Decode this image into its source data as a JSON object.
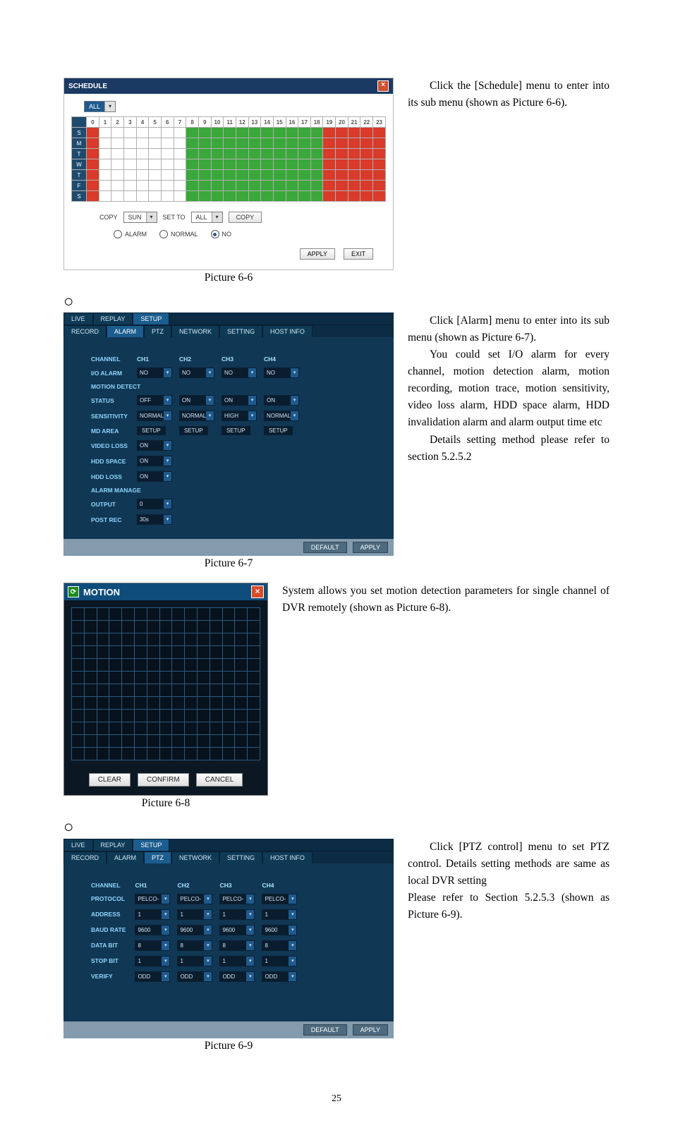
{
  "layout": {
    "page_number": "25",
    "captions": {
      "p66": "Picture 6-6",
      "p67": "Picture 6-7",
      "p68": "Picture 6-8",
      "p69": "Picture 6-9"
    },
    "text": {
      "schedule_para": "Click the [Schedule] menu to enter into its sub menu (shown as Picture 6-6).",
      "alarm_p1": "Click [Alarm] menu to enter into its sub menu (shown as Picture 6-7).",
      "alarm_p2": "You could set I/O alarm for every channel, motion detection alarm, motion recording, motion trace, motion sensitivity, video loss alarm, HDD space alarm, HDD invalidation alarm and alarm output time etc",
      "alarm_p3": "Details setting method please refer to section 5.2.5.2",
      "motion_para": "System allows you set motion detection parameters for single channel of DVR remotely (shown as Picture 6-8).",
      "ptz_p1": "Click [PTZ control] menu to set PTZ control. Details setting methods are same as local DVR setting",
      "ptz_p2": "Please refer to Section 5.2.5.3 (shown as Picture 6-9)."
    }
  },
  "pic66": {
    "title": "SCHEDULE",
    "ch_label": "",
    "ch_value": "ALL",
    "hours": [
      "0",
      "1",
      "2",
      "3",
      "4",
      "5",
      "6",
      "7",
      "8",
      "9",
      "10",
      "11",
      "12",
      "13",
      "14",
      "15",
      "16",
      "17",
      "18",
      "19",
      "20",
      "21",
      "22",
      "23"
    ],
    "days": [
      "S",
      "M",
      "T",
      "W",
      "T",
      "F",
      "S"
    ],
    "cell_colors": {
      "first": "#d93a2a",
      "blank": "#ffffff",
      "green": "#3aa83a",
      "red": "#d93a2a"
    },
    "pattern": {
      "green_start": 8,
      "red_start": 19
    },
    "copy_label": "COPY",
    "copy_from": "SUN",
    "setto_label": "SET TO",
    "setto_value": "ALL",
    "copy_btn": "COPY",
    "legend": {
      "alarm": "ALARM",
      "normal": "NORMAL",
      "no": "NO"
    },
    "apply": "APPLY",
    "exit": "EXIT"
  },
  "pic67": {
    "tabs_row1": [
      "LIVE",
      "REPLAY",
      "SETUP"
    ],
    "tabs_row2": [
      "RECORD",
      "ALARM",
      "PTZ",
      "NETWORK",
      "SETTING",
      "HOST INFO"
    ],
    "active_row1": 2,
    "active_row2": 1,
    "headers": [
      "CH1",
      "CH2",
      "CH3",
      "CH4"
    ],
    "rows": [
      {
        "label": "CHANNEL",
        "type": "header"
      },
      {
        "label": "I/O ALARM",
        "vals": [
          "NO",
          "NO",
          "NO",
          "NO"
        ]
      },
      {
        "label": "MOTION DETECT",
        "type": "section"
      },
      {
        "label": "STATUS",
        "vals": [
          "OFF",
          "ON",
          "ON",
          "ON"
        ]
      },
      {
        "label": "SENSITIVITY",
        "vals": [
          "NORMAL",
          "NORMAL",
          "HIGH",
          "NORMAL"
        ]
      },
      {
        "label": "MD AREA",
        "type": "setup",
        "count": 4,
        "btn": "SETUP"
      },
      {
        "label": "VIDEO LOSS",
        "vals": [
          "ON"
        ]
      },
      {
        "label": "HDD SPACE",
        "vals": [
          "ON"
        ]
      },
      {
        "label": "HDD LOSS",
        "vals": [
          "ON"
        ]
      },
      {
        "label": "ALARM MANAGE",
        "type": "section"
      },
      {
        "label": "OUTPUT",
        "vals": [
          "0"
        ]
      },
      {
        "label": "POST REC",
        "vals": [
          "30s"
        ]
      }
    ],
    "footer": {
      "default": "DEFAULT",
      "apply": "APPLY"
    }
  },
  "pic68": {
    "title": "MOTION",
    "cols": 15,
    "rows": 12,
    "buttons": {
      "clear": "CLEAR",
      "confirm": "CONFIRM",
      "cancel": "CANCEL"
    }
  },
  "pic69": {
    "tabs_row1": [
      "LIVE",
      "REPLAY",
      "SETUP"
    ],
    "tabs_row2": [
      "RECORD",
      "ALARM",
      "PTZ",
      "NETWORK",
      "SETTING",
      "HOST INFO"
    ],
    "active_row1": 2,
    "active_row2": 2,
    "headers": [
      "CH1",
      "CH2",
      "CH3",
      "CH4"
    ],
    "rows": [
      {
        "label": "CHANNEL",
        "type": "header"
      },
      {
        "label": "PROTOCOL",
        "vals": [
          "PELCO-D",
          "PELCO-D",
          "PELCO-D",
          "PELCO-D"
        ]
      },
      {
        "label": "ADDRESS",
        "vals": [
          "1",
          "1",
          "1",
          "1"
        ]
      },
      {
        "label": "BAUD RATE",
        "vals": [
          "9600",
          "9600",
          "9600",
          "9600"
        ]
      },
      {
        "label": "DATA BIT",
        "vals": [
          "8",
          "8",
          "8",
          "8"
        ]
      },
      {
        "label": "STOP BIT",
        "vals": [
          "1",
          "1",
          "1",
          "1"
        ]
      },
      {
        "label": "VERIFY",
        "vals": [
          "ODD",
          "ODD",
          "ODD",
          "ODD"
        ]
      }
    ],
    "footer": {
      "default": "DEFAULT",
      "apply": "APPLY"
    }
  }
}
